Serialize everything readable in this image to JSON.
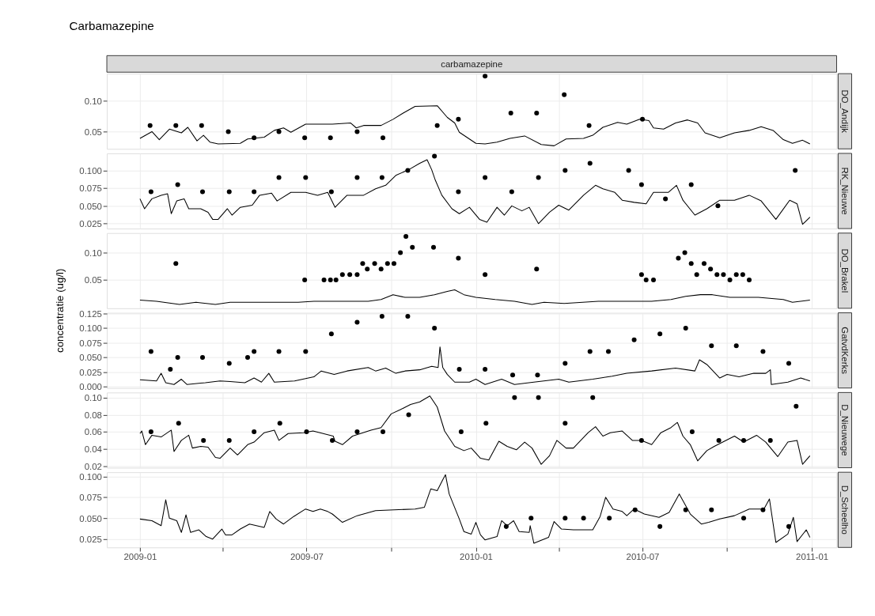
{
  "chart_data": [
    {
      "type": "line",
      "title": "Carbamazepine",
      "subtitle": "carbamazepine",
      "y2label": "DO_Andijk",
      "grid": true,
      "tick_labels": "y",
      "xlim": [
        "2008-11-26",
        "2011-01-28"
      ],
      "ylim": [
        0.022,
        0.144
      ],
      "yticks": [
        0.05,
        {
          "value": 0.1,
          "label": "0.10"
        }
      ],
      "series": [
        {
          "color": "#000000",
          "x": [
            "2009-01-01",
            "2009-01-14",
            "2009-01-22",
            "2009-02-02",
            "2009-02-15",
            "2009-02-22",
            "2009-03-04",
            "2009-03-11",
            "2009-03-18",
            "2009-03-27",
            "2009-04-20",
            "2009-04-28",
            "2009-05-16",
            "2009-05-27",
            "2009-06-06",
            "2009-06-14",
            "2009-06-30",
            "2009-07-29",
            "2009-08-18",
            "2009-08-24",
            "2009-09-01",
            "2009-09-20",
            "2009-10-03",
            "2009-10-14",
            "2009-10-27",
            "2009-11-20",
            "2009-12-01",
            "2009-12-09",
            "2009-12-14",
            "2010-01-01",
            "2010-01-11",
            "2010-01-24",
            "2010-02-07",
            "2010-02-23",
            "2010-03-13",
            "2010-03-27",
            "2010-04-09",
            "2010-04-28",
            "2010-05-08",
            "2010-05-19",
            "2010-06-04",
            "2010-06-14",
            "2010-06-28",
            "2010-07-08",
            "2010-07-13",
            "2010-07-24",
            "2010-08-06",
            "2010-08-19",
            "2010-08-30",
            "2010-09-07",
            "2010-09-23",
            "2010-10-09",
            "2010-10-25",
            "2010-11-07",
            "2010-11-20",
            "2010-12-01",
            "2010-12-11",
            "2010-12-22",
            "2010-12-30"
          ],
          "values": [
            0.039,
            0.05,
            0.037,
            0.054,
            0.048,
            0.057,
            0.035,
            0.044,
            0.033,
            0.03,
            0.031,
            0.038,
            0.041,
            0.052,
            0.056,
            0.049,
            0.062,
            0.062,
            0.064,
            0.056,
            0.06,
            0.06,
            0.07,
            0.08,
            0.091,
            0.092,
            0.073,
            0.064,
            0.049,
            0.031,
            0.03,
            0.033,
            0.039,
            0.043,
            0.029,
            0.027,
            0.038,
            0.039,
            0.044,
            0.057,
            0.065,
            0.062,
            0.07,
            0.068,
            0.056,
            0.054,
            0.064,
            0.069,
            0.064,
            0.048,
            0.04,
            0.048,
            0.052,
            0.058,
            0.052,
            0.037,
            0.031,
            0.036,
            0.03
          ]
        },
        {
          "type": "scatter",
          "color": "#000000",
          "x": [
            "2009-01-12",
            "2009-02-09",
            "2009-03-09",
            "2009-04-07",
            "2009-05-05",
            "2009-06-01",
            "2009-06-29",
            "2009-07-27",
            "2009-08-25",
            "2009-09-22",
            "2009-11-20",
            "2009-12-13",
            "2010-01-11",
            "2010-02-08",
            "2010-03-08",
            "2010-04-07",
            "2010-05-04",
            "2010-07-01"
          ],
          "values": [
            0.06,
            0.06,
            0.06,
            0.05,
            0.04,
            0.05,
            0.04,
            0.04,
            0.05,
            0.04,
            0.06,
            0.07,
            0.14,
            0.08,
            0.08,
            0.11,
            0.06,
            0.07
          ]
        }
      ]
    },
    {
      "type": "line",
      "y2label": "RK_Nieuwe",
      "grid": true,
      "tick_labels": "y",
      "xlim": [
        "2008-11-26",
        "2011-01-28"
      ],
      "ylim": [
        0.018,
        0.124
      ],
      "yticks": [
        0.025,
        {
          "value": 0.05,
          "label": "0.050"
        },
        0.075,
        {
          "value": 0.1,
          "label": "0.100"
        }
      ],
      "series": [
        {
          "color": "#000000",
          "x": [
            "2009-01-01",
            "2009-01-06",
            "2009-01-14",
            "2009-01-24",
            "2009-01-31",
            "2009-02-04",
            "2009-02-10",
            "2009-02-18",
            "2009-02-23",
            "2009-03-08",
            "2009-03-16",
            "2009-03-21",
            "2009-03-27",
            "2009-04-06",
            "2009-04-11",
            "2009-04-20",
            "2009-05-03",
            "2009-05-11",
            "2009-05-24",
            "2009-05-30",
            "2009-06-14",
            "2009-06-30",
            "2009-07-13",
            "2009-07-24",
            "2009-08-01",
            "2009-08-14",
            "2009-09-01",
            "2009-09-14",
            "2009-09-25",
            "2009-10-06",
            "2009-10-20",
            "2009-11-01",
            "2009-11-09",
            "2009-11-14",
            "2009-11-18",
            "2009-11-25",
            "2009-12-06",
            "2009-12-14",
            "2009-12-25",
            "2010-01-05",
            "2010-01-13",
            "2010-01-24",
            "2010-02-01",
            "2010-02-09",
            "2010-02-20",
            "2010-02-28",
            "2010-03-10",
            "2010-03-22",
            "2010-04-01",
            "2010-04-12",
            "2010-04-28",
            "2010-05-11",
            "2010-05-19",
            "2010-06-01",
            "2010-06-09",
            "2010-06-22",
            "2010-07-05",
            "2010-07-13",
            "2010-07-29",
            "2010-08-07",
            "2010-08-14",
            "2010-08-27",
            "2010-09-09",
            "2010-09-23",
            "2010-10-09",
            "2010-10-25",
            "2010-11-07",
            "2010-11-23",
            "2010-12-08",
            "2010-12-16",
            "2010-12-22",
            "2010-12-30"
          ],
          "values": [
            0.06,
            0.046,
            0.06,
            0.065,
            0.067,
            0.039,
            0.057,
            0.06,
            0.046,
            0.046,
            0.041,
            0.031,
            0.031,
            0.046,
            0.037,
            0.048,
            0.051,
            0.065,
            0.068,
            0.057,
            0.069,
            0.069,
            0.065,
            0.069,
            0.048,
            0.065,
            0.065,
            0.074,
            0.079,
            0.093,
            0.101,
            0.11,
            0.115,
            0.101,
            0.086,
            0.065,
            0.046,
            0.039,
            0.048,
            0.031,
            0.027,
            0.048,
            0.037,
            0.05,
            0.043,
            0.048,
            0.025,
            0.041,
            0.051,
            0.044,
            0.065,
            0.079,
            0.074,
            0.069,
            0.058,
            0.055,
            0.053,
            0.069,
            0.069,
            0.079,
            0.058,
            0.037,
            0.046,
            0.058,
            0.058,
            0.065,
            0.057,
            0.031,
            0.058,
            0.053,
            0.024,
            0.034
          ]
        },
        {
          "type": "scatter",
          "color": "#000000",
          "x": [
            "2009-01-13",
            "2009-02-11",
            "2009-03-10",
            "2009-04-08",
            "2009-05-05",
            "2009-06-01",
            "2009-06-30",
            "2009-07-28",
            "2009-08-25",
            "2009-09-21",
            "2009-10-19",
            "2009-11-17",
            "2009-12-13",
            "2010-01-11",
            "2010-02-09",
            "2010-03-10",
            "2010-04-08",
            "2010-05-05",
            "2010-06-16",
            "2010-06-30",
            "2010-07-26",
            "2010-08-23",
            "2010-09-21",
            "2010-12-14"
          ],
          "values": [
            0.07,
            0.08,
            0.07,
            0.07,
            0.07,
            0.09,
            0.09,
            0.07,
            0.09,
            0.09,
            0.1,
            0.12,
            0.07,
            0.09,
            0.07,
            0.09,
            0.1,
            0.11,
            0.1,
            0.08,
            0.06,
            0.08,
            0.05,
            0.1
          ]
        }
      ]
    },
    {
      "type": "line",
      "y2label": "DO_Brakel",
      "grid": true,
      "tick_labels": "y",
      "xlim": [
        "2008-11-26",
        "2011-01-28"
      ],
      "ylim": [
        -0.002,
        0.136
      ],
      "yticks": [
        0.05,
        {
          "value": 0.1,
          "label": "0.10"
        }
      ],
      "series": [
        {
          "color": "#000000",
          "x": [
            "2009-01-01",
            "2009-01-19",
            "2009-02-13",
            "2009-03-03",
            "2009-03-24",
            "2009-04-09",
            "2009-05-11",
            "2009-06-22",
            "2009-07-09",
            "2009-09-06",
            "2009-09-20",
            "2009-10-03",
            "2009-10-16",
            "2009-11-01",
            "2009-11-17",
            "2009-12-01",
            "2009-12-09",
            "2009-12-19",
            "2010-01-01",
            "2010-01-22",
            "2010-02-12",
            "2010-03-03",
            "2010-03-16",
            "2010-04-07",
            "2010-05-14",
            "2010-07-11",
            "2010-08-01",
            "2010-08-17",
            "2010-09-02",
            "2010-09-15",
            "2010-10-04",
            "2010-11-04",
            "2010-12-01",
            "2010-12-11",
            "2010-12-30"
          ],
          "values": [
            0.013,
            0.011,
            0.005,
            0.009,
            0.005,
            0.009,
            0.009,
            0.009,
            0.011,
            0.011,
            0.014,
            0.023,
            0.018,
            0.018,
            0.023,
            0.029,
            0.032,
            0.023,
            0.018,
            0.014,
            0.011,
            0.005,
            0.009,
            0.007,
            0.011,
            0.011,
            0.014,
            0.02,
            0.023,
            0.023,
            0.018,
            0.018,
            0.014,
            0.009,
            0.013
          ]
        },
        {
          "type": "scatter",
          "color": "#000000",
          "x": [
            "2009-02-09",
            "2009-06-29",
            "2009-07-20",
            "2009-07-27",
            "2009-08-02",
            "2009-08-09",
            "2009-08-17",
            "2009-08-25",
            "2009-08-31",
            "2009-09-05",
            "2009-09-13",
            "2009-09-20",
            "2009-09-27",
            "2009-10-04",
            "2009-10-11",
            "2009-10-17",
            "2009-10-24",
            "2009-11-16",
            "2009-12-13",
            "2010-01-11",
            "2010-03-08",
            "2010-06-30",
            "2010-07-05",
            "2010-07-13",
            "2010-08-09",
            "2010-08-16",
            "2010-08-23",
            "2010-08-29",
            "2010-09-06",
            "2010-09-13",
            "2010-09-20",
            "2010-09-27",
            "2010-10-04",
            "2010-10-11",
            "2010-10-18",
            "2010-10-25"
          ],
          "values": [
            0.08,
            0.05,
            0.05,
            0.05,
            0.05,
            0.06,
            0.06,
            0.06,
            0.08,
            0.07,
            0.08,
            0.07,
            0.08,
            0.08,
            0.1,
            0.13,
            0.11,
            0.11,
            0.09,
            0.06,
            0.07,
            0.06,
            0.05,
            0.05,
            0.09,
            0.1,
            0.08,
            0.06,
            0.08,
            0.07,
            0.06,
            0.06,
            0.05,
            0.06,
            0.06,
            0.05
          ]
        }
      ]
    },
    {
      "type": "line",
      "y2label": "GatvdKerks",
      "ylabel": "concentratie (ug/l)",
      "grid": true,
      "tick_labels": "y",
      "xlim": [
        "2008-11-26",
        "2011-01-28"
      ],
      "ylim": [
        -0.002,
        0.126
      ],
      "yticks": [
        {
          "value": 0,
          "label": "0.000"
        },
        0.025,
        {
          "value": 0.05,
          "label": "0.050"
        },
        0.075,
        {
          "value": 0.1,
          "label": "0.100"
        },
        0.125
      ],
      "series": [
        {
          "color": "#000000",
          "x": [
            "2009-01-01",
            "2009-01-19",
            "2009-01-24",
            "2009-01-29",
            "2009-02-07",
            "2009-02-15",
            "2009-02-21",
            "2009-03-13",
            "2009-03-29",
            "2009-04-09",
            "2009-04-25",
            "2009-05-05",
            "2009-05-13",
            "2009-05-21",
            "2009-05-27",
            "2009-06-18",
            "2009-07-09",
            "2009-07-17",
            "2009-07-31",
            "2009-08-14",
            "2009-09-06",
            "2009-09-14",
            "2009-09-25",
            "2009-10-06",
            "2009-10-16",
            "2009-11-01",
            "2009-11-14",
            "2009-11-21",
            "2009-11-23",
            "2009-11-26",
            "2009-12-01",
            "2009-12-09",
            "2009-12-25",
            "2010-01-01",
            "2010-01-11",
            "2010-01-29",
            "2010-02-12",
            "2010-03-05",
            "2010-04-01",
            "2010-04-12",
            "2010-05-08",
            "2010-05-29",
            "2010-06-14",
            "2010-07-11",
            "2010-08-06",
            "2010-08-27",
            "2010-09-01",
            "2010-09-09",
            "2010-09-23",
            "2010-10-01",
            "2010-10-14",
            "2010-10-30",
            "2010-11-12",
            "2010-11-17",
            "2010-11-18",
            "2010-12-06",
            "2010-12-20",
            "2010-12-30"
          ],
          "values": [
            0.012,
            0.01,
            0.023,
            0.007,
            0.004,
            0.013,
            0.004,
            0.007,
            0.01,
            0.009,
            0.007,
            0.015,
            0.008,
            0.023,
            0.008,
            0.01,
            0.017,
            0.027,
            0.021,
            0.027,
            0.033,
            0.027,
            0.032,
            0.023,
            0.027,
            0.029,
            0.035,
            0.033,
            0.068,
            0.033,
            0.021,
            0.008,
            0.008,
            0.013,
            0.004,
            0.013,
            0.004,
            0.008,
            0.013,
            0.008,
            0.013,
            0.018,
            0.023,
            0.027,
            0.032,
            0.027,
            0.046,
            0.038,
            0.015,
            0.021,
            0.017,
            0.023,
            0.023,
            0.029,
            0.004,
            0.008,
            0.015,
            0.01
          ]
        },
        {
          "type": "scatter",
          "color": "#000000",
          "x": [
            "2009-01-13",
            "2009-02-03",
            "2009-02-11",
            "2009-03-10",
            "2009-04-08",
            "2009-04-28",
            "2009-05-05",
            "2009-06-01",
            "2009-06-30",
            "2009-07-28",
            "2009-08-25",
            "2009-09-21",
            "2009-10-19",
            "2009-11-17",
            "2009-12-14",
            "2010-01-11",
            "2010-02-10",
            "2010-03-09",
            "2010-04-08",
            "2010-05-05",
            "2010-05-25",
            "2010-06-22",
            "2010-07-20",
            "2010-08-17",
            "2010-09-14",
            "2010-10-11",
            "2010-11-09",
            "2010-12-07"
          ],
          "values": [
            0.06,
            0.03,
            0.05,
            0.05,
            0.04,
            0.05,
            0.06,
            0.06,
            0.06,
            0.09,
            0.11,
            0.12,
            0.12,
            0.1,
            0.03,
            0.03,
            0.02,
            0.02,
            0.04,
            0.06,
            0.06,
            0.08,
            0.09,
            0.1,
            0.07,
            0.07,
            0.06,
            0.04
          ]
        }
      ]
    },
    {
      "type": "line",
      "y2label": "D_Nieuwege",
      "grid": true,
      "tick_labels": "y",
      "xlim": [
        "2008-11-26",
        "2011-01-28"
      ],
      "ylim": [
        0.018,
        0.106
      ],
      "yticks": [
        0.02,
        0.04,
        0.06,
        0.08,
        {
          "value": 0.1,
          "label": "0.10"
        }
      ],
      "series": [
        {
          "color": "#000000",
          "x": [
            "2009-01-01",
            "2009-01-03",
            "2009-01-07",
            "2009-01-14",
            "2009-01-24",
            "2009-02-04",
            "2009-02-07",
            "2009-02-15",
            "2009-02-23",
            "2009-02-27",
            "2009-03-08",
            "2009-03-16",
            "2009-03-24",
            "2009-03-29",
            "2009-04-09",
            "2009-04-17",
            "2009-04-28",
            "2009-05-05",
            "2009-05-16",
            "2009-05-27",
            "2009-06-01",
            "2009-06-11",
            "2009-06-28",
            "2009-07-08",
            "2009-07-30",
            "2009-08-01",
            "2009-08-09",
            "2009-08-20",
            "2009-09-09",
            "2009-09-20",
            "2009-10-01",
            "2009-10-11",
            "2009-10-22",
            "2009-11-01",
            "2009-11-12",
            "2009-11-20",
            "2009-11-28",
            "2009-12-09",
            "2009-12-19",
            "2009-12-27",
            "2010-01-06",
            "2010-01-15",
            "2010-01-26",
            "2010-02-04",
            "2010-02-14",
            "2010-02-23",
            "2010-03-03",
            "2010-03-13",
            "2010-03-22",
            "2010-03-30",
            "2010-04-09",
            "2010-04-17",
            "2010-05-03",
            "2010-05-11",
            "2010-05-19",
            "2010-05-27",
            "2010-06-09",
            "2010-06-20",
            "2010-06-30",
            "2010-07-11",
            "2010-07-21",
            "2010-08-01",
            "2010-08-08",
            "2010-08-14",
            "2010-08-22",
            "2010-08-30",
            "2010-09-09",
            "2010-09-17",
            "2010-09-28",
            "2010-10-09",
            "2010-10-19",
            "2010-11-02",
            "2010-11-12",
            "2010-11-25",
            "2010-12-06",
            "2010-12-16",
            "2010-12-22",
            "2010-12-30"
          ],
          "values": [
            0.058,
            0.061,
            0.045,
            0.056,
            0.054,
            0.062,
            0.037,
            0.05,
            0.056,
            0.041,
            0.043,
            0.042,
            0.03,
            0.029,
            0.041,
            0.033,
            0.045,
            0.048,
            0.059,
            0.062,
            0.05,
            0.058,
            0.059,
            0.061,
            0.055,
            0.049,
            0.045,
            0.055,
            0.062,
            0.065,
            0.081,
            0.086,
            0.092,
            0.095,
            0.102,
            0.089,
            0.061,
            0.043,
            0.038,
            0.041,
            0.029,
            0.027,
            0.049,
            0.043,
            0.039,
            0.048,
            0.041,
            0.022,
            0.032,
            0.05,
            0.041,
            0.041,
            0.059,
            0.066,
            0.055,
            0.059,
            0.061,
            0.05,
            0.05,
            0.045,
            0.059,
            0.065,
            0.071,
            0.055,
            0.045,
            0.026,
            0.038,
            0.043,
            0.049,
            0.055,
            0.048,
            0.056,
            0.048,
            0.031,
            0.048,
            0.05,
            0.022,
            0.032
          ]
        },
        {
          "type": "scatter",
          "color": "#000000",
          "x": [
            "2009-01-13",
            "2009-02-12",
            "2009-03-11",
            "2009-04-08",
            "2009-05-05",
            "2009-06-02",
            "2009-07-01",
            "2009-07-29",
            "2009-08-25",
            "2009-09-22",
            "2009-10-20",
            "2009-12-16",
            "2010-01-12",
            "2010-02-12",
            "2010-03-10",
            "2010-04-08",
            "2010-05-08",
            "2010-06-30",
            "2010-08-24",
            "2010-09-22",
            "2010-10-19",
            "2010-11-17",
            "2010-12-15"
          ],
          "values": [
            0.06,
            0.07,
            0.05,
            0.05,
            0.06,
            0.07,
            0.06,
            0.05,
            0.06,
            0.06,
            0.08,
            0.06,
            0.07,
            0.1,
            0.1,
            0.07,
            0.1,
            0.05,
            0.06,
            0.05,
            0.05,
            0.05,
            0.09
          ]
        }
      ]
    },
    {
      "type": "line",
      "y2label": "D_Scheelho",
      "grid": true,
      "xlim": [
        "2008-11-26",
        "2011-01-28"
      ],
      "xticks": [
        {
          "value": "2009-01-01",
          "label": "2009-01"
        },
        {
          "value": "2009-04-01",
          "label": null
        },
        {
          "value": "2009-07-01",
          "label": "2009-07"
        },
        {
          "value": "2009-10-01",
          "label": null
        },
        {
          "value": "2010-01-01",
          "label": "2010-01"
        },
        {
          "value": "2010-04-01",
          "label": null
        },
        {
          "value": "2010-07-01",
          "label": "2010-07"
        },
        {
          "value": "2010-10-01",
          "label": null
        },
        {
          "value": "2011-01-01",
          "label": "2011-01"
        }
      ],
      "ylim": [
        0.015,
        0.105
      ],
      "yticks": [
        0.025,
        {
          "value": 0.05,
          "label": "0.050"
        },
        0.075,
        {
          "value": 0.1,
          "label": "0.100"
        }
      ],
      "series": [
        {
          "color": "#000000",
          "x": [
            "2009-01-01",
            "2009-01-14",
            "2009-01-24",
            "2009-01-29",
            "2009-02-02",
            "2009-02-10",
            "2009-02-15",
            "2009-02-20",
            "2009-02-25",
            "2009-03-06",
            "2009-03-14",
            "2009-03-21",
            "2009-03-31",
            "2009-04-04",
            "2009-04-11",
            "2009-04-20",
            "2009-04-30",
            "2009-05-16",
            "2009-05-22",
            "2009-05-29",
            "2009-06-06",
            "2009-06-17",
            "2009-06-30",
            "2009-07-08",
            "2009-07-16",
            "2009-07-24",
            "2009-07-29",
            "2009-08-09",
            "2009-08-25",
            "2009-09-14",
            "2009-10-27",
            "2009-11-06",
            "2009-11-13",
            "2009-11-20",
            "2009-11-26",
            "2009-11-29",
            "2009-12-03",
            "2009-12-14",
            "2009-12-19",
            "2009-12-27",
            "2010-01-01",
            "2010-01-06",
            "2010-01-11",
            "2010-01-24",
            "2010-01-29",
            "2010-02-04",
            "2010-02-11",
            "2010-02-17",
            "2010-02-28",
            "2010-03-01",
            "2010-03-05",
            "2010-03-21",
            "2010-03-27",
            "2010-04-04",
            "2010-04-17",
            "2010-05-08",
            "2010-05-16",
            "2010-05-22",
            "2010-05-30",
            "2010-06-09",
            "2010-06-14",
            "2010-06-22",
            "2010-07-03",
            "2010-07-19",
            "2010-07-30",
            "2010-08-10",
            "2010-08-22",
            "2010-09-03",
            "2010-09-11",
            "2010-09-23",
            "2010-10-09",
            "2010-10-25",
            "2010-11-10",
            "2010-11-16",
            "2010-11-23",
            "2010-12-06",
            "2010-12-12",
            "2010-12-16",
            "2010-12-26",
            "2010-12-30"
          ],
          "values": [
            0.049,
            0.047,
            0.041,
            0.072,
            0.05,
            0.047,
            0.033,
            0.054,
            0.033,
            0.036,
            0.028,
            0.025,
            0.037,
            0.03,
            0.03,
            0.037,
            0.043,
            0.039,
            0.058,
            0.049,
            0.043,
            0.052,
            0.061,
            0.058,
            0.061,
            0.058,
            0.055,
            0.045,
            0.053,
            0.059,
            0.061,
            0.063,
            0.085,
            0.083,
            0.096,
            0.102,
            0.079,
            0.049,
            0.034,
            0.031,
            0.045,
            0.03,
            0.024,
            0.028,
            0.047,
            0.041,
            0.047,
            0.034,
            0.033,
            0.041,
            0.02,
            0.027,
            0.046,
            0.037,
            0.036,
            0.036,
            0.052,
            0.075,
            0.061,
            0.058,
            0.053,
            0.061,
            0.055,
            0.051,
            0.057,
            0.079,
            0.055,
            0.043,
            0.045,
            0.049,
            0.053,
            0.061,
            0.061,
            0.073,
            0.021,
            0.031,
            0.051,
            0.022,
            0.036,
            0.027
          ]
        },
        {
          "type": "scatter",
          "color": "#000000",
          "x": [
            "2010-02-03",
            "2010-03-02",
            "2010-04-08",
            "2010-04-28",
            "2010-05-26",
            "2010-06-23",
            "2010-07-20",
            "2010-08-17",
            "2010-09-14",
            "2010-10-19",
            "2010-11-09",
            "2010-12-07"
          ],
          "values": [
            0.04,
            0.05,
            0.05,
            0.05,
            0.05,
            0.06,
            0.04,
            0.06,
            0.06,
            0.05,
            0.06,
            0.04
          ]
        }
      ]
    }
  ]
}
